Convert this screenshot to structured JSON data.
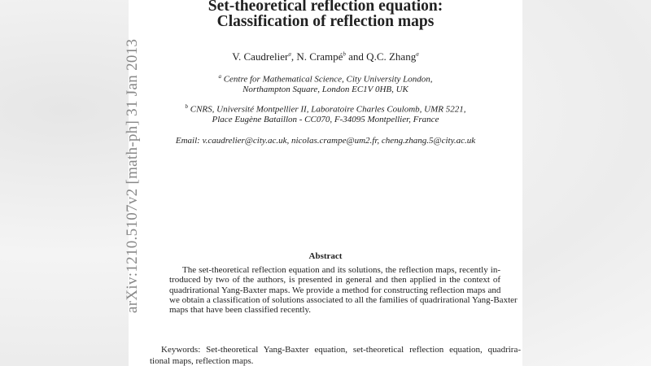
{
  "stamp": "arXiv:1210.5107v2  [math-ph]  31 Jan 2013",
  "title": [
    "Set-theoretical reflection equation:",
    "Classification of reflection maps"
  ],
  "authors": {
    "a1": "V. Caudrelier",
    "s1": "a",
    "a2": ", N. Crampé",
    "s2": "b",
    "a3": " and Q.C. Zhang",
    "s3": "a"
  },
  "affil_a": {
    "mark": "a",
    "lines": [
      "Centre for Mathematical Science, City University London,",
      "Northampton Square, London EC1V 0HB, UK"
    ]
  },
  "affil_b": {
    "mark": "b",
    "lines": [
      "CNRS, Université Montpellier II, Laboratoire Charles Coulomb, UMR 5221,",
      "Place Eugène Bataillon - CC070, F-34095 Montpellier, France"
    ]
  },
  "email": "Email: v.caudrelier@city.ac.uk, nicolas.crampe@um2.fr, cheng.zhang.5@city.ac.uk",
  "abstract": {
    "heading": "Abstract",
    "lines": [
      "The set-theoretical reflection equation and its solutions, the reflection maps, recently in-",
      "troduced by two of the authors, is presented in general and then applied in the context of",
      "quadrirational Yang-Baxter maps. We provide a method for constructing reflection maps and",
      "we obtain a classification of solutions associated to all the families of quadrirational Yang-Baxter",
      "maps that have been classified recently."
    ]
  },
  "keywords": [
    "Keywords: Set-theoretical Yang-Baxter equation, set-theoretical reflection equation, quadrira-",
    "tional maps, reflection maps."
  ]
}
